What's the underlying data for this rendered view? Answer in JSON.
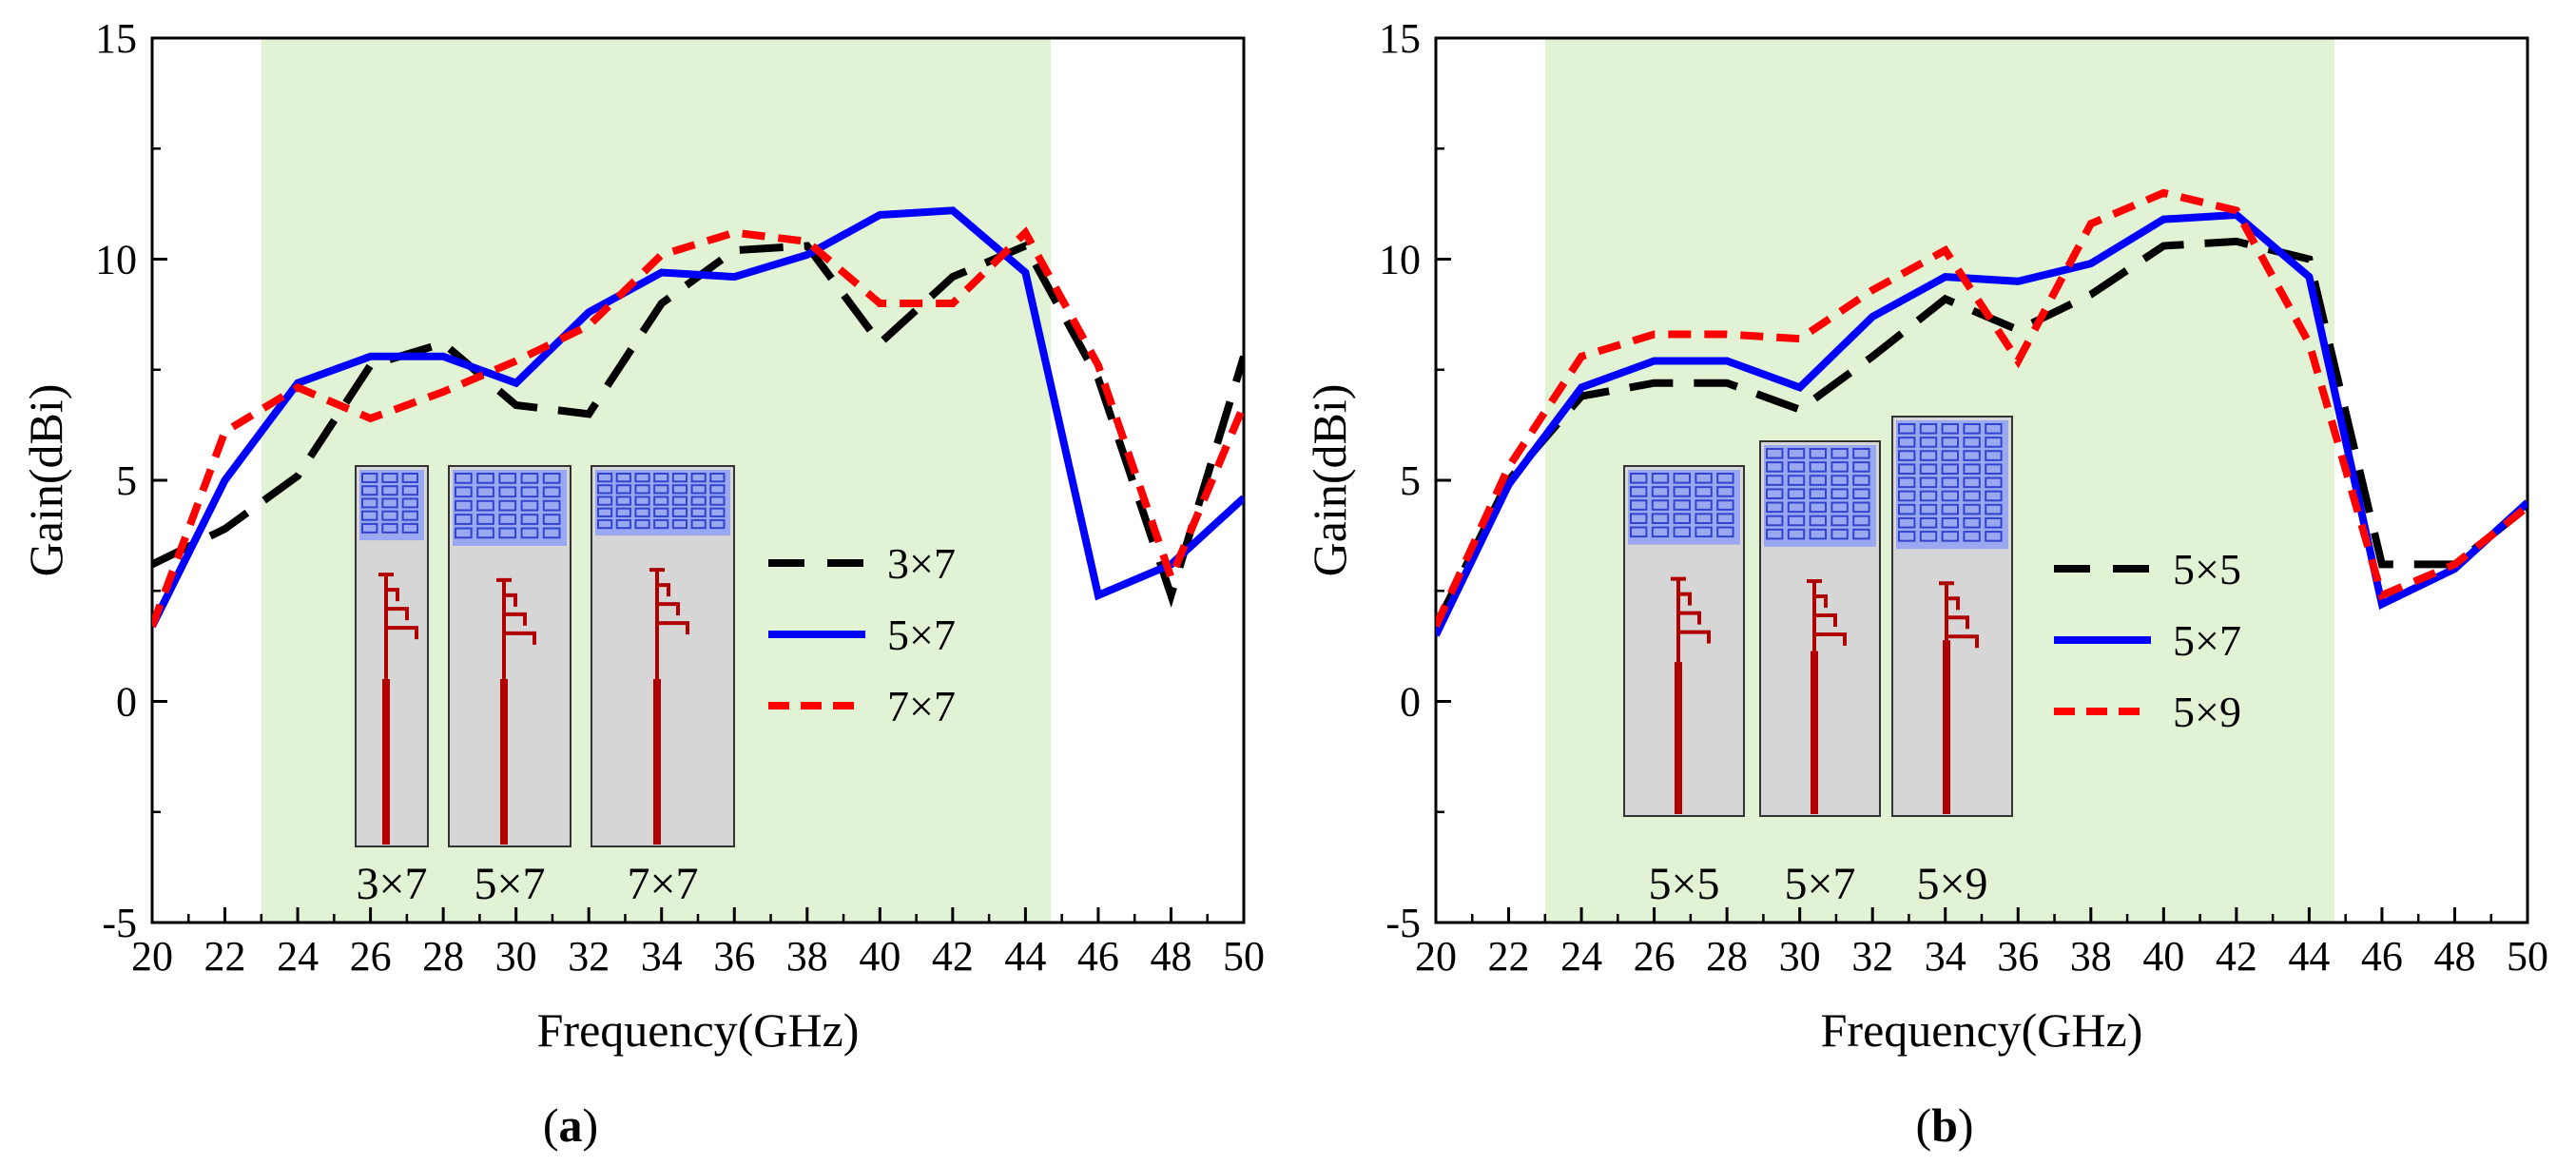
{
  "chart_data": [
    {
      "type": "line",
      "id": "a",
      "panel_label": {
        "open": "(",
        "letter": "a",
        "close": ")"
      },
      "xlabel": "Frequency(GHz)",
      "ylabel": "Gain(dBi)",
      "xlim": [
        20,
        50
      ],
      "ylim": [
        -5,
        15
      ],
      "xticks": [
        20,
        22,
        24,
        26,
        28,
        30,
        32,
        34,
        36,
        38,
        40,
        42,
        44,
        46,
        48,
        50
      ],
      "yticks": [
        -5,
        0,
        5,
        10,
        15
      ],
      "band": [
        23,
        44.7
      ],
      "band_color": "#e2f2d5",
      "series": [
        {
          "name": "3×7",
          "color": "#000000",
          "dash": "black-dash",
          "x": [
            20,
            22,
            24,
            26,
            28,
            30,
            32,
            34,
            36,
            38,
            40,
            42,
            44,
            46,
            48,
            50
          ],
          "y": [
            3.1,
            3.9,
            5.1,
            7.6,
            8.1,
            6.7,
            6.5,
            9.0,
            10.2,
            10.3,
            8.1,
            9.6,
            10.3,
            7.3,
            2.4,
            7.8
          ]
        },
        {
          "name": "5×7",
          "color": "#0000ff",
          "dash": "solid",
          "x": [
            20,
            22,
            24,
            26,
            28,
            30,
            32,
            34,
            36,
            38,
            40,
            42,
            44,
            46,
            48,
            50
          ],
          "y": [
            1.7,
            5.0,
            7.2,
            7.8,
            7.8,
            7.2,
            8.8,
            9.7,
            9.6,
            10.1,
            11.0,
            11.1,
            9.7,
            2.4,
            3.1,
            4.6
          ]
        },
        {
          "name": "7×7",
          "color": "#ff0000",
          "dash": "red-dash",
          "x": [
            20,
            22,
            24,
            26,
            28,
            30,
            32,
            34,
            36,
            38,
            40,
            42,
            44,
            46,
            48,
            50
          ],
          "y": [
            1.7,
            6.1,
            7.1,
            6.4,
            7.0,
            7.7,
            8.5,
            10.1,
            10.6,
            10.4,
            9.0,
            9.0,
            10.6,
            7.6,
            2.8,
            6.7
          ]
        }
      ],
      "insets": [
        "3×7",
        "5×7",
        "7×7"
      ]
    },
    {
      "type": "line",
      "id": "b",
      "panel_label": {
        "open": "(",
        "letter": "b",
        "close": ")"
      },
      "xlabel": "Frequency(GHz)",
      "ylabel": "Gain(dBi)",
      "xlim": [
        20,
        50
      ],
      "ylim": [
        -5,
        15
      ],
      "xticks": [
        20,
        22,
        24,
        26,
        28,
        30,
        32,
        34,
        36,
        38,
        40,
        42,
        44,
        46,
        48,
        50
      ],
      "yticks": [
        -5,
        0,
        5,
        10,
        15
      ],
      "band": [
        23,
        44.7
      ],
      "band_color": "#e2f2d5",
      "series": [
        {
          "name": "5×5",
          "color": "#000000",
          "dash": "black-dash",
          "x": [
            20,
            22,
            24,
            26,
            28,
            30,
            32,
            34,
            36,
            38,
            40,
            42,
            44,
            46,
            48,
            50
          ],
          "y": [
            1.7,
            5.0,
            6.9,
            7.2,
            7.2,
            6.6,
            7.8,
            9.1,
            8.4,
            9.2,
            10.3,
            10.4,
            10.0,
            3.1,
            3.1,
            4.4
          ]
        },
        {
          "name": "5×7",
          "color": "#0000ff",
          "dash": "solid",
          "x": [
            20,
            22,
            24,
            26,
            28,
            30,
            32,
            34,
            36,
            38,
            40,
            42,
            44,
            46,
            48,
            50
          ],
          "y": [
            1.5,
            4.9,
            7.1,
            7.7,
            7.7,
            7.1,
            8.7,
            9.6,
            9.5,
            9.9,
            10.9,
            11.0,
            9.6,
            2.2,
            3.0,
            4.5
          ]
        },
        {
          "name": "5×9",
          "color": "#ff0000",
          "dash": "red-dash",
          "x": [
            20,
            22,
            24,
            26,
            28,
            30,
            32,
            34,
            36,
            38,
            40,
            42,
            44,
            46,
            48,
            50
          ],
          "y": [
            1.7,
            5.3,
            7.8,
            8.3,
            8.3,
            8.2,
            9.3,
            10.2,
            7.7,
            10.8,
            11.5,
            11.1,
            8.1,
            2.4,
            3.1,
            4.4
          ]
        }
      ],
      "insets": [
        "5×5",
        "5×7",
        "5×9"
      ]
    }
  ]
}
